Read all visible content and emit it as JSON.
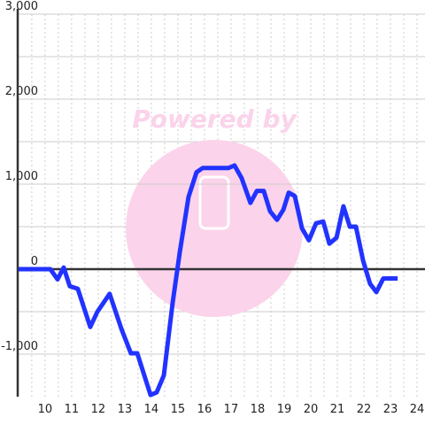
{
  "chart_data": {
    "type": "line",
    "watermark": "Powered by",
    "x": [
      9.0,
      10.2,
      10.47,
      10.7,
      10.93,
      11.23,
      11.7,
      11.97,
      12.43,
      12.87,
      13.23,
      13.47,
      13.97,
      14.2,
      14.47,
      14.8,
      15.07,
      15.4,
      15.7,
      15.93,
      16.9,
      17.13,
      17.4,
      17.73,
      17.97,
      18.23,
      18.47,
      18.73,
      18.97,
      19.17,
      19.4,
      19.67,
      19.93,
      20.2,
      20.47,
      20.7,
      20.97,
      21.23,
      21.47,
      21.7,
      21.97,
      22.23,
      22.47,
      22.73,
      23.27
    ],
    "series": [
      {
        "color": "#2233ff",
        "values": [
          0,
          0,
          -120,
          20,
          -200,
          -230,
          -680,
          -500,
          -290,
          -700,
          -990,
          -990,
          -1480,
          -1450,
          -1250,
          -400,
          200,
          850,
          1140,
          1190,
          1190,
          1220,
          1070,
          780,
          920,
          920,
          680,
          580,
          700,
          900,
          860,
          480,
          340,
          540,
          560,
          300,
          370,
          740,
          500,
          500,
          100,
          -170,
          -270,
          -110,
          -110
        ]
      }
    ],
    "xlim": [
      8.97,
      24.3
    ],
    "xticks": [
      10,
      11,
      12,
      13,
      14,
      15,
      16,
      17,
      18,
      19,
      20,
      21,
      22,
      23,
      24
    ],
    "x_minor_gridlines": [
      9.5,
      10.5,
      11.5,
      12.5,
      13.5,
      14.5,
      15.5,
      16.5,
      17.5,
      18.5,
      19.5,
      20.5,
      21.5,
      22.5,
      23.5
    ],
    "ylim": [
      -1500,
      3000
    ],
    "yticks": [
      {
        "value": 3000,
        "label": "3,000"
      },
      {
        "value": 2000,
        "label": "2,000"
      },
      {
        "value": 1000,
        "label": "1,000"
      },
      0,
      {
        "value": -1000,
        "label": "-1,000"
      }
    ],
    "y_minor_gridlines": [
      2500,
      1500,
      500,
      -500
    ],
    "grid": true
  }
}
